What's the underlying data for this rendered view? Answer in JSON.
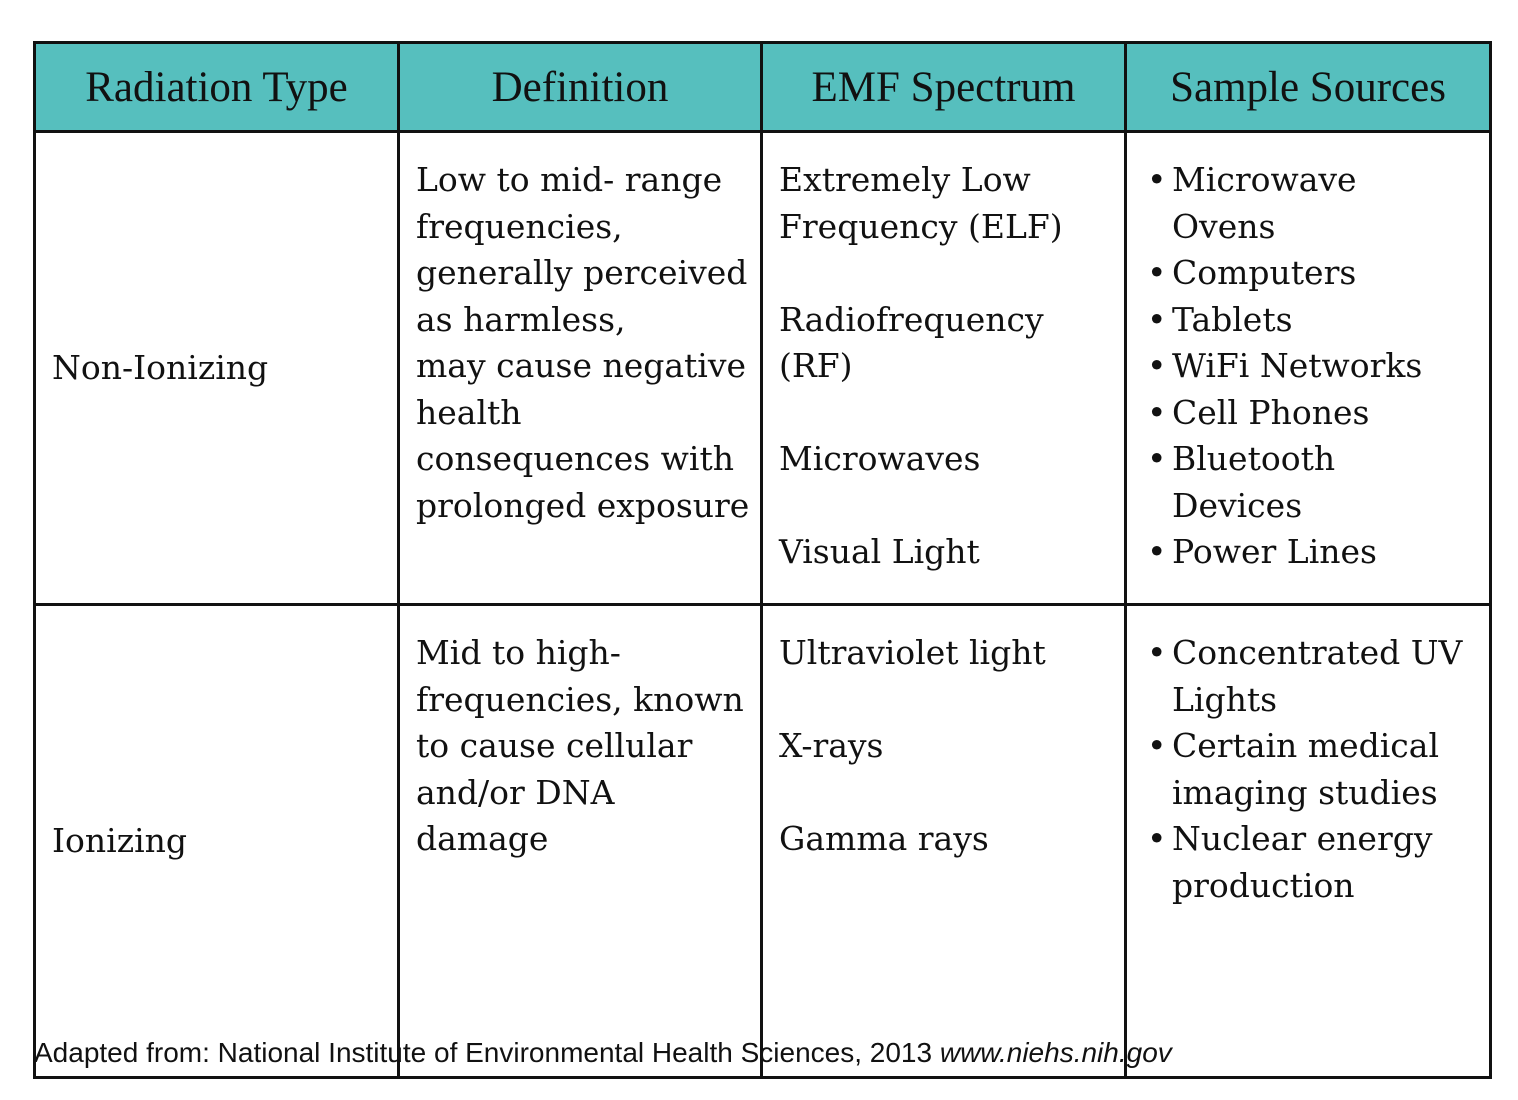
{
  "table": {
    "headers": [
      "Radiation Type",
      "Definition",
      "EMF Spectrum",
      "Sample Sources"
    ],
    "header_color": "#56bfbe",
    "rows": [
      {
        "type": "Non-Ionizing",
        "definition_lines": [
          "Low to mid- range",
          "frequencies,",
          "generally perceived",
          "as harmless,",
          "may cause negative",
          "health",
          "consequences with",
          "prolonged exposure"
        ],
        "spectrum": [
          [
            "Extremely Low",
            "Frequency (ELF)"
          ],
          [
            "Radiofrequency",
            "(RF)"
          ],
          [
            "Microwaves"
          ],
          [
            "Visual Light"
          ]
        ],
        "sources": [
          [
            "Microwave",
            "Ovens"
          ],
          [
            "Computers"
          ],
          [
            "Tablets"
          ],
          [
            "WiFi Networks"
          ],
          [
            "Cell Phones"
          ],
          [
            "Bluetooth",
            "Devices"
          ],
          [
            "Power Lines"
          ]
        ]
      },
      {
        "type": "Ionizing",
        "definition_lines": [
          "Mid to high-",
          "frequencies, known",
          "to cause cellular",
          "and/or DNA",
          "damage"
        ],
        "spectrum": [
          [
            "Ultraviolet light"
          ],
          [
            "X-rays"
          ],
          [
            "Gamma rays"
          ]
        ],
        "sources": [
          [
            "Concentrated UV",
            "Lights"
          ],
          [
            "Certain medical",
            "imaging studies"
          ],
          [
            "Nuclear energy",
            "production"
          ]
        ]
      }
    ]
  },
  "footer": {
    "text": "Adapted from: National Institute of Environmental Health Sciences, 2013",
    "url": "www.niehs.nih.gov"
  }
}
